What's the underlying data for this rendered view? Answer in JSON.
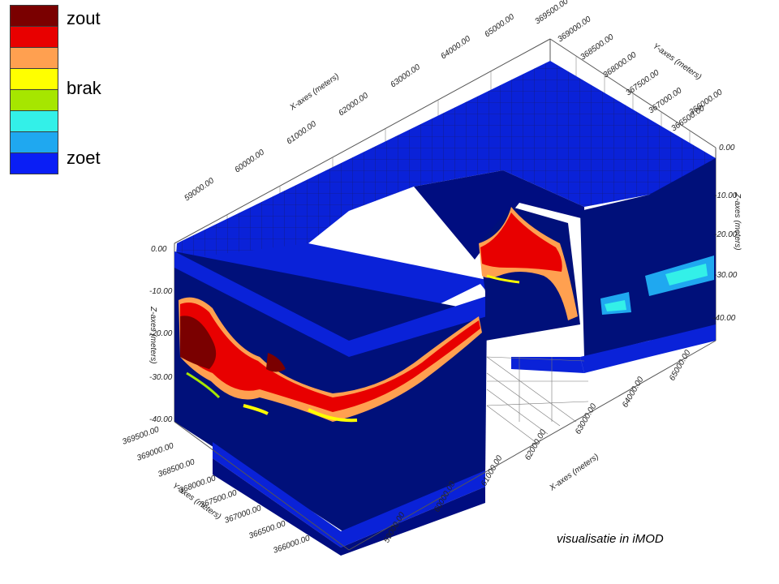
{
  "legend": {
    "swatches": [
      "#7a0000",
      "#e80000",
      "#ffa050",
      "#ffff00",
      "#a6e600",
      "#33f0e8",
      "#1fa8f0",
      "#0a1ef5",
      "#000a8a"
    ],
    "labels": {
      "salt": "zout",
      "brackish": "brak",
      "fresh": "zoet"
    }
  },
  "axes": {
    "x_title": "X-axes (meters)",
    "y_title": "Y-axes (meters)",
    "z_title": "Z-axes (meters)",
    "x_ticks_top": [
      "59000.00",
      "60000.00",
      "61000.00",
      "62000.00",
      "63000.00",
      "64000.00",
      "65000.00"
    ],
    "x_ticks_bottom": [
      "59000.00",
      "60000.00",
      "61000.00",
      "62000.00",
      "63000.00",
      "64000.00",
      "65000.00"
    ],
    "y_ticks_left": [
      "369500.00",
      "369000.00",
      "368500.00",
      "368000.00",
      "367500.00",
      "367000.00",
      "366500.00",
      "366000.00"
    ],
    "y_ticks_right": [
      "369500.00",
      "369000.00",
      "368500.00",
      "368000.00",
      "367500.00",
      "367000.00",
      "366500.00",
      "366000.00"
    ],
    "z_ticks_left": [
      "0.00",
      "-10.00",
      "-20.00",
      "-30.00",
      "-40.00"
    ],
    "z_ticks_right": [
      "0.00",
      "-10.00",
      "-20.00",
      "-30.00",
      "-40.00"
    ]
  },
  "caption": "visualisatie in iMOD"
}
